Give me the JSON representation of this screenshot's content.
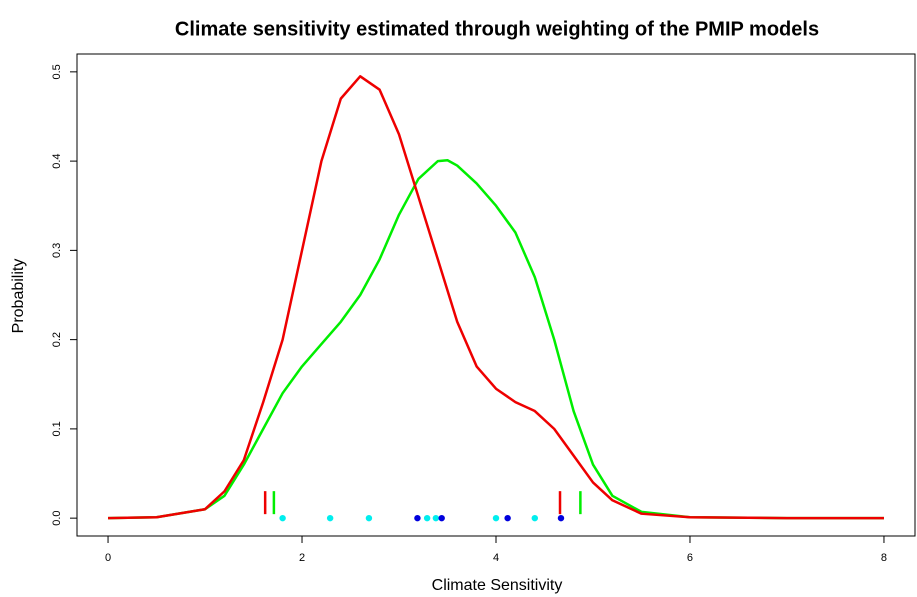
{
  "chart_data": {
    "type": "line",
    "title": "Climate sensitivity estimated through weighting of the PMIP models",
    "x_label": "Climate Sensitivity",
    "y_label": "Probability",
    "x": [
      0,
      0.5,
      1,
      1.2,
      1.4,
      1.6,
      1.8,
      2.0,
      2.2,
      2.4,
      2.6,
      2.8,
      3.0,
      3.2,
      3.4,
      3.5,
      3.6,
      3.8,
      4.0,
      4.2,
      4.4,
      4.6,
      4.8,
      5.0,
      5.2,
      5.5,
      6,
      7,
      8
    ],
    "series": [
      {
        "color": "#00ee00",
        "values": [
          0,
          0.001,
          0.01,
          0.025,
          0.06,
          0.1,
          0.14,
          0.17,
          0.195,
          0.22,
          0.25,
          0.29,
          0.34,
          0.38,
          0.4,
          0.401,
          0.395,
          0.375,
          0.35,
          0.32,
          0.27,
          0.2,
          0.12,
          0.06,
          0.025,
          0.007,
          0.001,
          0,
          0
        ]
      },
      {
        "color": "#ee0000",
        "values": [
          0,
          0.001,
          0.01,
          0.03,
          0.065,
          0.13,
          0.2,
          0.3,
          0.4,
          0.47,
          0.495,
          0.48,
          0.43,
          0.36,
          0.29,
          0.255,
          0.22,
          0.17,
          0.145,
          0.13,
          0.12,
          0.1,
          0.07,
          0.04,
          0.02,
          0.005,
          0.001,
          0,
          0
        ]
      }
    ],
    "interval_marks": [
      {
        "color": "#ee0000",
        "x": [
          1.62,
          4.66
        ]
      },
      {
        "color": "#00ee00",
        "x": [
          1.71,
          4.87
        ]
      }
    ],
    "points": [
      {
        "color": "#00eeee",
        "x": [
          1.8,
          2.29,
          2.69,
          3.29,
          3.38,
          4.0,
          4.4
        ],
        "values": [
          0,
          0,
          0,
          0,
          0,
          0,
          0
        ]
      },
      {
        "color": "#0000dd",
        "x": [
          3.19,
          3.44,
          4.12,
          4.67
        ],
        "values": [
          0,
          0,
          0,
          0
        ]
      }
    ],
    "xlim": [
      -0.32,
      8.32
    ],
    "ylim": [
      -0.02,
      0.52
    ],
    "xticks": [
      0,
      2,
      4,
      6,
      8
    ],
    "yticks": [
      {
        "value": 0,
        "label": "0.0"
      },
      0.1,
      0.2,
      0.3,
      0.4,
      0.5
    ]
  }
}
